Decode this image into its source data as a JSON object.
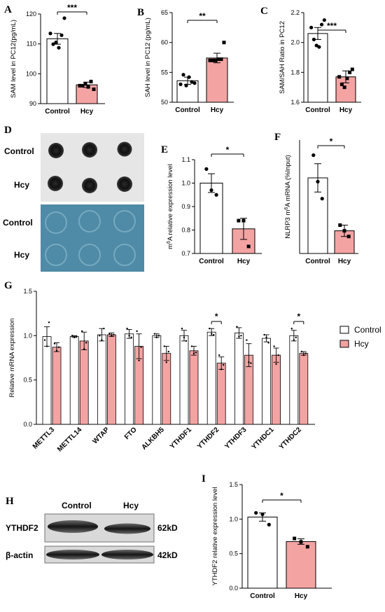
{
  "colors": {
    "control_fill": "#ffffff",
    "hcy_fill": "#f4a3a3",
    "edge": "#000000",
    "blot_membrane": "#4f8aa6"
  },
  "panel_letters": [
    "A",
    "B",
    "C",
    "D",
    "E",
    "F",
    "G",
    "H",
    "I"
  ],
  "chart_data": [
    {
      "panel": "A",
      "type": "bar",
      "categories": [
        "Control",
        "Hcy"
      ],
      "values": [
        111.7,
        96.3
      ],
      "errors": [
        1.8,
        0.9
      ],
      "points": [
        [
          113.5,
          109.9,
          110.5,
          108.7,
          112.9,
          118.6
        ],
        [
          96.0,
          96.0,
          96.6,
          95.6,
          97.4,
          94.8
        ]
      ],
      "ylabel": "SAM level in PC12(pg/mL)",
      "ylim": [
        90,
        120
      ],
      "yticks": [
        90,
        100,
        110,
        120
      ],
      "significance": "***"
    },
    {
      "panel": "B",
      "type": "bar",
      "categories": [
        "Control",
        "Hcy"
      ],
      "values": [
        53.6,
        57.4
      ],
      "errors": [
        0.6,
        0.8
      ],
      "points": [
        [
          53.0,
          54.6,
          52.8,
          54.2,
          53.4,
          53.2
        ],
        [
          57.0,
          57.0,
          57.0,
          57.2,
          57.2,
          60.0
        ]
      ],
      "ylabel": "SAH level in PC12 (pg/mL)",
      "ylim": [
        50,
        65
      ],
      "yticks": [
        50,
        55,
        60,
        65
      ],
      "significance": "**"
    },
    {
      "panel": "C",
      "type": "bar",
      "categories": [
        "Control",
        "Hcy"
      ],
      "values": [
        2.06,
        1.77
      ],
      "errors": [
        0.04,
        0.04
      ],
      "points": [
        [
          2.1,
          2.02,
          1.98,
          1.97,
          2.12,
          2.15
        ],
        [
          1.77,
          1.72,
          1.7,
          1.76,
          1.8,
          1.82
        ]
      ],
      "ylabel": "SAM/SAH Ratio in PC12",
      "ylim": [
        1.6,
        2.2
      ],
      "yticks": [
        1.6,
        1.8,
        2.0,
        2.2
      ],
      "significance": "***"
    },
    {
      "panel": "E",
      "type": "bar",
      "categories": [
        "Control",
        "Hcy"
      ],
      "values": [
        1.0,
        0.805
      ],
      "errors": [
        0.04,
        0.045
      ],
      "points": [
        [
          1.06,
          0.97,
          0.95
        ],
        [
          0.84,
          0.84,
          0.73
        ]
      ],
      "ylabel": "m6A relative expression level",
      "ylim": [
        0.7,
        1.1
      ],
      "yticks": [
        0.7,
        0.8,
        0.9,
        1.0,
        1.1
      ],
      "significance": "*"
    },
    {
      "panel": "F",
      "type": "bar",
      "categories": [
        "Control",
        "Hcy"
      ],
      "values": [
        1.0,
        0.72
      ],
      "errors": [
        0.075,
        0.03
      ],
      "points": [
        [
          1.12,
          0.98,
          0.89
        ],
        [
          0.75,
          0.72,
          0.69
        ]
      ],
      "ylabel": "NLRP3 m6A mRNA (%Input)",
      "ylim": [
        0.6,
        1.2
      ],
      "yticks": [],
      "significance": "*"
    },
    {
      "panel": "G",
      "type": "bar",
      "categories": [
        "METTL3",
        "METTL14",
        "WTAP",
        "FTO",
        "ALKBH5",
        "YTHDF1",
        "YTHDF2",
        "YTHDF3",
        "YTHDC1",
        "YTHDC2"
      ],
      "series": [
        {
          "name": "Control",
          "values": [
            0.99,
            0.99,
            1.01,
            1.02,
            1.0,
            1.0,
            1.04,
            1.03,
            0.97,
            1.0
          ],
          "errors": [
            0.11,
            0.01,
            0.07,
            0.05,
            0.02,
            0.06,
            0.04,
            0.06,
            0.04,
            0.06
          ],
          "points": [
            [
              0.95,
              0.88,
              1.15
            ],
            [
              1.0,
              0.98,
              0.99
            ],
            [
              1.0,
              0.95,
              1.08
            ],
            [
              1.08,
              1.0,
              0.98
            ],
            [
              1.02,
              0.98,
              1.0
            ],
            [
              1.08,
              0.98,
              0.94
            ],
            [
              1.08,
              1.02,
              1.01
            ],
            [
              1.1,
              0.99,
              1.0
            ],
            [
              1.01,
              0.98,
              0.92
            ],
            [
              1.08,
              0.95,
              0.98
            ]
          ]
        },
        {
          "name": "Hcy",
          "values": [
            0.87,
            0.94,
            1.01,
            0.88,
            0.8,
            0.83,
            0.69,
            0.78,
            0.78,
            0.8
          ],
          "errors": [
            0.05,
            0.1,
            0.02,
            0.14,
            0.08,
            0.05,
            0.07,
            0.13,
            0.08,
            0.02
          ],
          "points": [
            [
              0.91,
              0.83,
              0.87
            ],
            [
              1.05,
              0.85,
              0.92
            ],
            [
              1.02,
              1.0,
              1.01
            ],
            [
              1.05,
              0.72,
              0.87
            ],
            [
              0.88,
              0.7,
              0.82
            ],
            [
              0.88,
              0.8,
              0.81
            ],
            [
              0.78,
              0.62,
              0.67
            ],
            [
              0.95,
              0.7,
              0.69
            ],
            [
              0.88,
              0.68,
              0.78
            ],
            [
              0.82,
              0.78,
              0.8
            ]
          ]
        }
      ],
      "ylabel": "Relative mRNA expression",
      "ylim": [
        0,
        1.5
      ],
      "yticks": [
        0.0,
        0.5,
        1.0,
        1.5
      ],
      "significance": [
        {
          "category": "YTHDF2",
          "label": "*"
        },
        {
          "category": "YTHDC2",
          "label": "*"
        }
      ],
      "legend": "right"
    },
    {
      "panel": "I",
      "type": "bar",
      "categories": [
        "Control",
        "Hcy"
      ],
      "values": [
        1.03,
        0.675
      ],
      "errors": [
        0.06,
        0.04
      ],
      "points": [
        [
          1.09,
          1.07,
          0.92
        ],
        [
          0.72,
          0.67,
          0.6
        ]
      ],
      "ylabel": "YTHDF2 relative expression level",
      "ylim": [
        0,
        1.5
      ],
      "yticks": [
        0.0,
        0.5,
        1.0,
        1.5
      ],
      "significance": "*"
    }
  ],
  "dot_blot": {
    "row_labels": [
      "Control",
      "Hcy",
      "Control",
      "Hcy"
    ]
  },
  "western": {
    "column_labels": [
      "Control",
      "Hcy"
    ],
    "row_labels": [
      "YTHDF2",
      "β-actin"
    ],
    "size_labels": [
      "62kD",
      "42kD"
    ]
  }
}
